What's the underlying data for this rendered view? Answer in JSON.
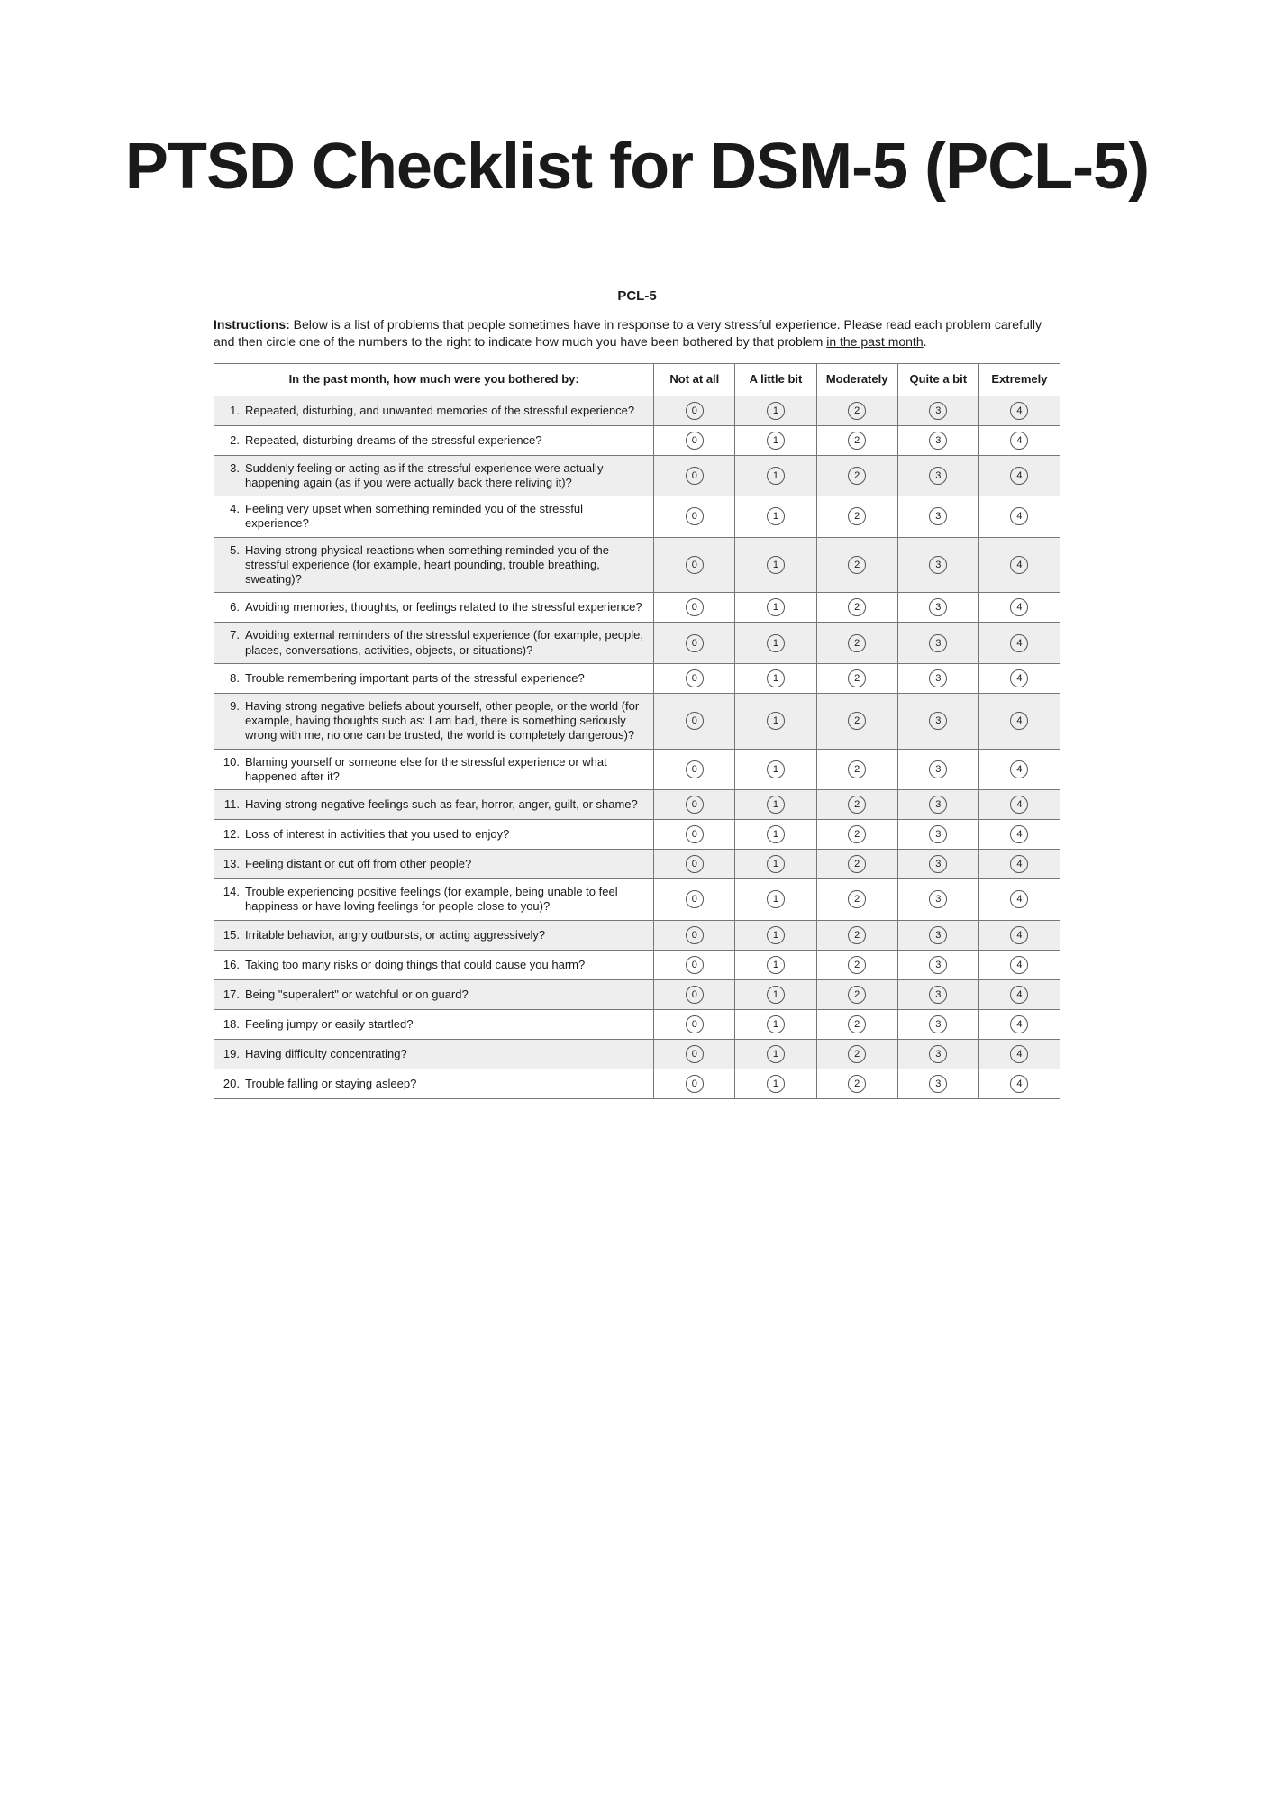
{
  "title": "PTSD Checklist for DSM-5 (PCL-5)",
  "form_heading": "PCL-5",
  "instructions_lead": "Instructions:",
  "instructions_body_pre": " Below is a list of problems that people sometimes have in response to a very stressful experience. Please read each problem carefully and then circle one of the numbers to the right to indicate how much you have been bothered by that problem ",
  "instructions_underlined": "in the past month",
  "instructions_body_post": ".",
  "table": {
    "question_header": "In the past month, how much were you bothered by:",
    "columns": [
      "Not at all",
      "A little bit",
      "Moderately",
      "Quite a bit",
      "Extremely"
    ],
    "option_values": [
      "0",
      "1",
      "2",
      "3",
      "4"
    ],
    "rows": [
      {
        "num": "1.",
        "text": "Repeated, disturbing, and unwanted memories of the stressful experience?",
        "shaded": true
      },
      {
        "num": "2.",
        "text": "Repeated, disturbing dreams of the stressful experience?",
        "shaded": false
      },
      {
        "num": "3.",
        "text": "Suddenly feeling or acting as if the stressful experience were actually happening again (as if you were actually back there reliving it)?",
        "shaded": true
      },
      {
        "num": "4.",
        "text": "Feeling very upset when something reminded you of the stressful experience?",
        "shaded": false
      },
      {
        "num": "5.",
        "text": "Having strong physical reactions when something reminded you of the stressful experience (for example, heart pounding, trouble breathing, sweating)?",
        "shaded": true
      },
      {
        "num": "6.",
        "text": "Avoiding memories, thoughts, or feelings related to the stressful experience?",
        "shaded": false
      },
      {
        "num": "7.",
        "text": "Avoiding external reminders of the stressful experience (for example, people, places, conversations, activities, objects, or situations)?",
        "shaded": true
      },
      {
        "num": "8.",
        "text": "Trouble remembering important parts of the stressful experience?",
        "shaded": false
      },
      {
        "num": "9.",
        "text": "Having strong negative beliefs about yourself, other people, or the world (for example, having thoughts such as: I am bad, there is something seriously wrong with me, no one can be trusted, the world is completely dangerous)?",
        "shaded": true
      },
      {
        "num": "10.",
        "text": "Blaming yourself or someone else for the stressful experience or what happened after it?",
        "shaded": false
      },
      {
        "num": "11.",
        "text": "Having strong negative feelings such as fear, horror, anger, guilt, or shame?",
        "shaded": true
      },
      {
        "num": "12.",
        "text": "Loss of interest in activities that you used to enjoy?",
        "shaded": false
      },
      {
        "num": "13.",
        "text": "Feeling distant or cut off from other people?",
        "shaded": true
      },
      {
        "num": "14.",
        "text": "Trouble experiencing positive feelings (for example, being unable to feel happiness or have loving feelings for people close to you)?",
        "shaded": false
      },
      {
        "num": "15.",
        "text": "Irritable behavior, angry outbursts, or acting aggressively?",
        "shaded": true
      },
      {
        "num": "16.",
        "text": "Taking too many risks or doing things that could cause you harm?",
        "shaded": false
      },
      {
        "num": "17.",
        "text": "Being \"superalert\" or watchful or on guard?",
        "shaded": true
      },
      {
        "num": "18.",
        "text": "Feeling jumpy or easily startled?",
        "shaded": false
      },
      {
        "num": "19.",
        "text": "Having difficulty concentrating?",
        "shaded": true
      },
      {
        "num": "20.",
        "text": "Trouble falling or staying asleep?",
        "shaded": false
      }
    ]
  },
  "colors": {
    "shaded_row_bg": "#eeeeee",
    "border": "#777777",
    "text": "#1a1a1a",
    "page_bg": "#ffffff"
  }
}
